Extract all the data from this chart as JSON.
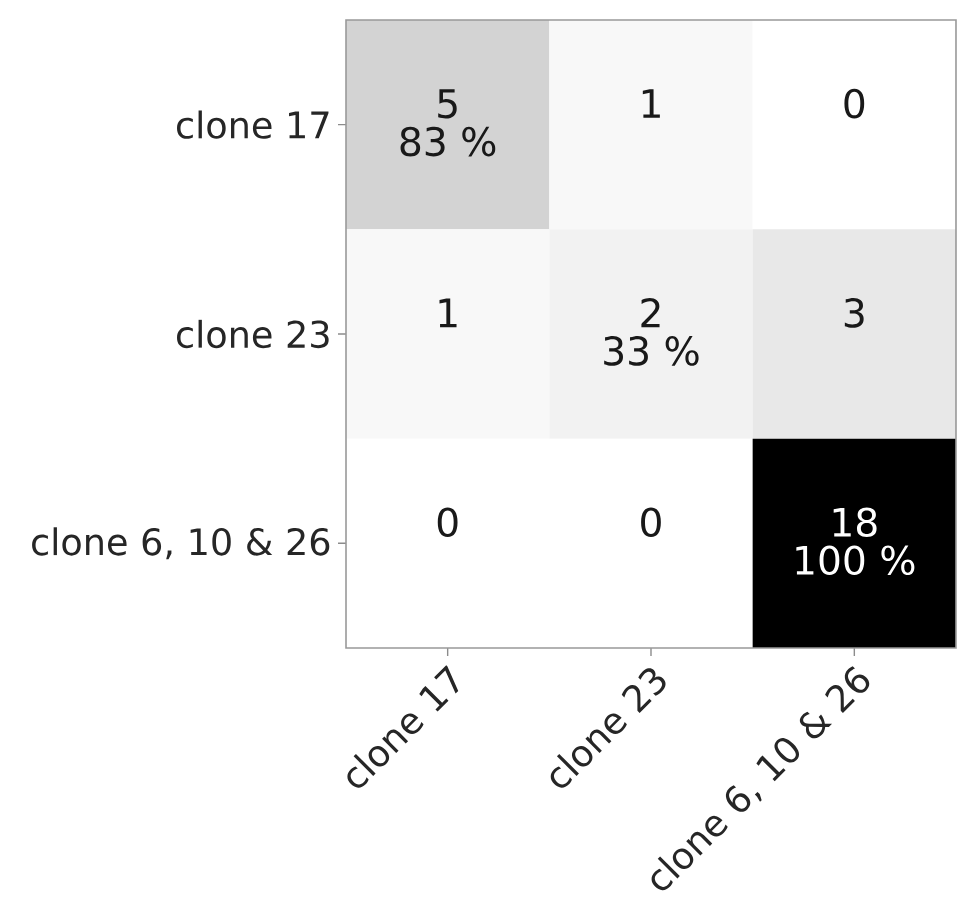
{
  "chart_data": {
    "type": "heatmap",
    "categories": [
      "clone 17",
      "clone 23",
      "clone 6, 10 & 26"
    ],
    "y_categories": [
      "clone 17",
      "clone 23",
      "clone 6, 10 & 26"
    ],
    "cells": [
      [
        5,
        1,
        0
      ],
      [
        1,
        2,
        3
      ],
      [
        0,
        0,
        18
      ]
    ],
    "cell_labels": [
      [
        "5",
        "1",
        "0"
      ],
      [
        "1",
        "2",
        "3"
      ],
      [
        "0",
        "0",
        "18"
      ]
    ],
    "annotations": [
      "83 %",
      "33 %",
      "100 %"
    ]
  }
}
